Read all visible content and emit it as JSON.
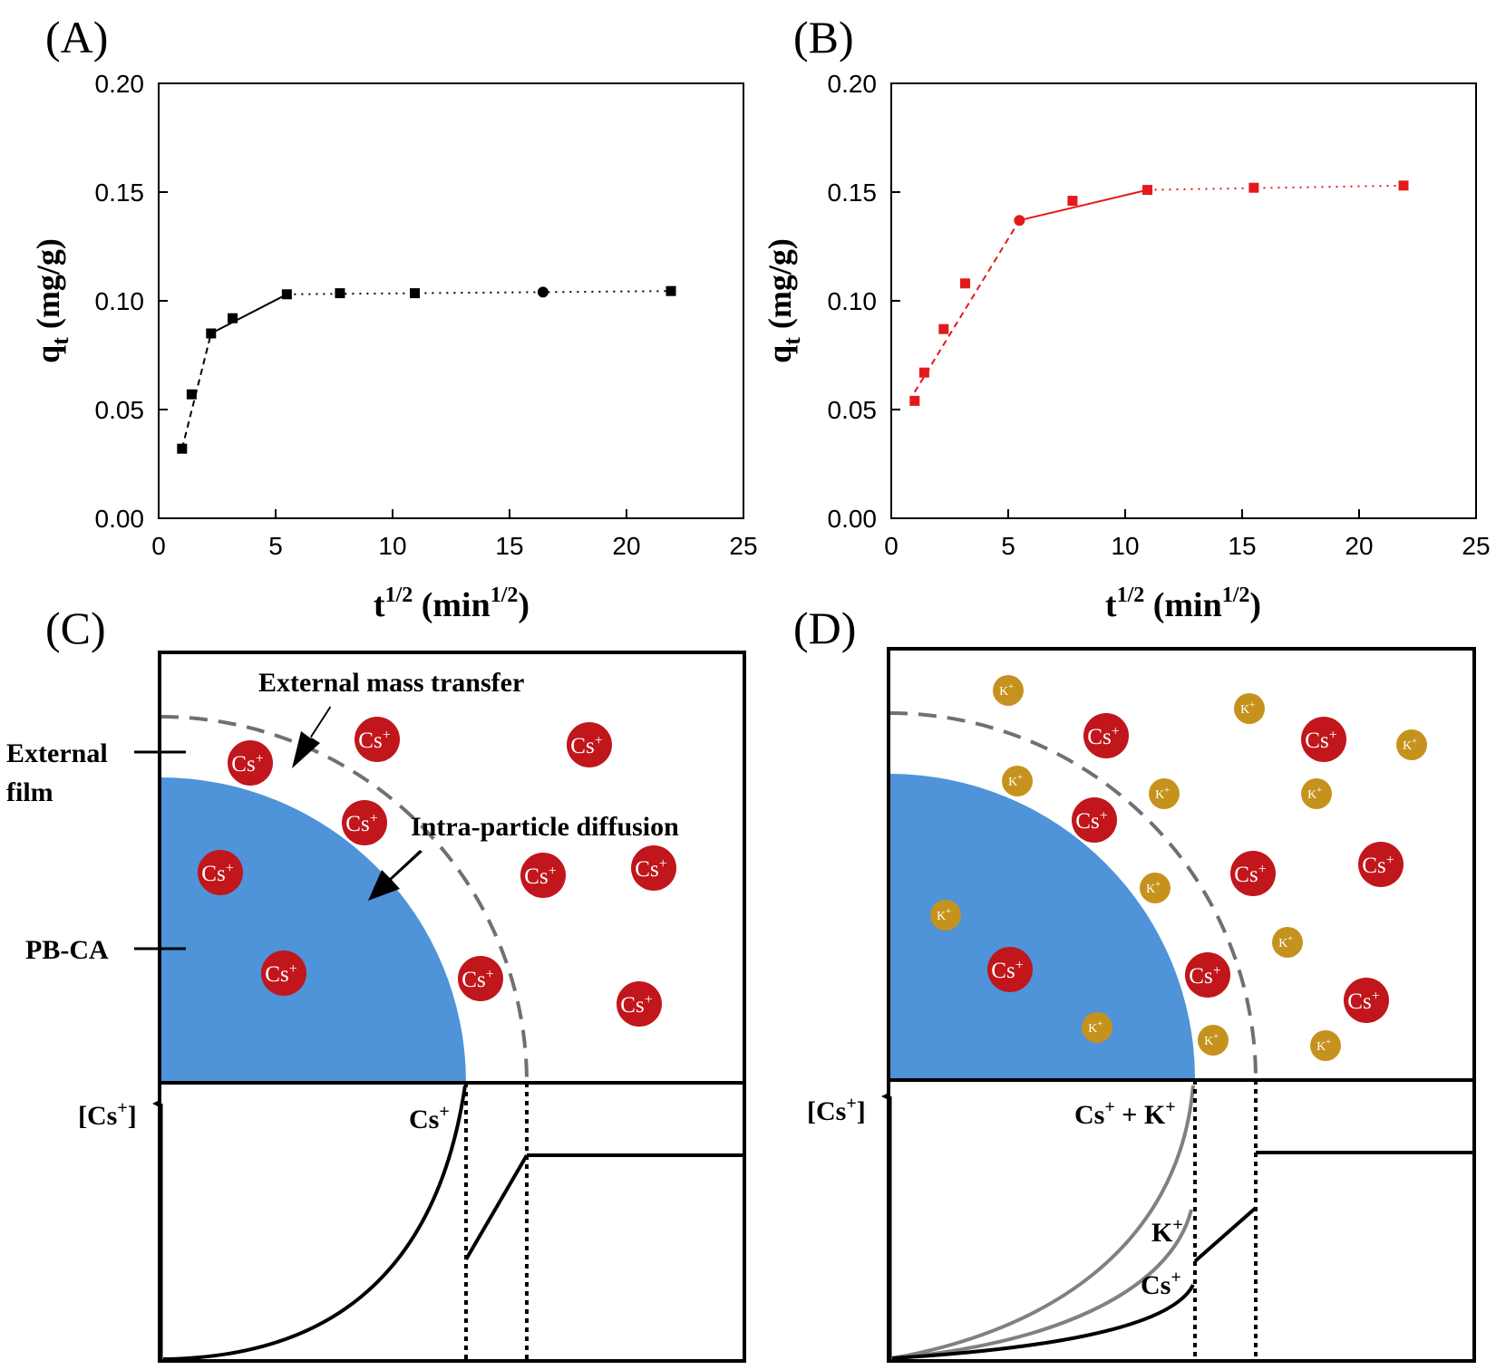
{
  "panels": {
    "A": "(A)",
    "B": "(B)",
    "C": "(C)",
    "D": "(D)"
  },
  "chart_data": [
    {
      "type": "scatter",
      "panel": "A",
      "ylabel_main": "q",
      "ylabel_sub": "t",
      "ylabel_unit": " (mg/g)",
      "xlabel_main": "t",
      "xlabel_sup": "1/2",
      "xlabel_unit": " (min",
      "xlabel_unit_sup": "1/2",
      "xlabel_close": ")",
      "xlim": [
        0,
        25
      ],
      "ylim": [
        0,
        0.2
      ],
      "xticks": [
        "0",
        "5",
        "10",
        "15",
        "20",
        "25"
      ],
      "yticks": [
        "0.00",
        "0.05",
        "0.10",
        "0.15",
        "0.20"
      ],
      "color": "#000000",
      "points": [
        [
          1.0,
          0.032
        ],
        [
          1.41,
          0.057
        ],
        [
          2.24,
          0.085
        ],
        [
          3.16,
          0.092
        ],
        [
          5.48,
          0.103
        ],
        [
          7.75,
          0.1035
        ],
        [
          10.95,
          0.1035
        ],
        [
          16.43,
          0.104
        ],
        [
          21.9,
          0.1045
        ]
      ],
      "round_marker_index": 7,
      "segments": [
        {
          "style": "dashed",
          "points": [
            [
              1.0,
              0.032
            ],
            [
              2.24,
              0.085
            ]
          ]
        },
        {
          "style": "solid",
          "points": [
            [
              2.24,
              0.085
            ],
            [
              5.48,
              0.103
            ]
          ]
        },
        {
          "style": "dotted",
          "points": [
            [
              5.48,
              0.103
            ],
            [
              21.9,
              0.1045
            ]
          ]
        }
      ]
    },
    {
      "type": "scatter",
      "panel": "B",
      "ylabel_main": "q",
      "ylabel_sub": "t",
      "ylabel_unit": " (mg/g)",
      "xlabel_main": "t",
      "xlabel_sup": "1/2",
      "xlabel_unit": " (min",
      "xlabel_unit_sup": "1/2",
      "xlabel_close": ")",
      "xlim": [
        0,
        25
      ],
      "ylim": [
        0,
        0.2
      ],
      "xticks": [
        "0",
        "5",
        "10",
        "15",
        "20",
        "25"
      ],
      "yticks": [
        "0.00",
        "0.05",
        "0.10",
        "0.15",
        "0.20"
      ],
      "color": "#e31a1c",
      "points": [
        [
          1.0,
          0.054
        ],
        [
          1.41,
          0.067
        ],
        [
          2.24,
          0.087
        ],
        [
          3.16,
          0.108
        ],
        [
          5.48,
          0.137
        ],
        [
          7.75,
          0.146
        ],
        [
          10.95,
          0.151
        ],
        [
          15.5,
          0.152
        ],
        [
          21.9,
          0.153
        ]
      ],
      "round_marker_index": 4,
      "segments": [
        {
          "style": "dashed",
          "points": [
            [
              1.0,
              0.058
            ],
            [
              5.48,
              0.137
            ]
          ]
        },
        {
          "style": "solid",
          "points": [
            [
              5.48,
              0.137
            ],
            [
              10.95,
              0.151
            ]
          ]
        },
        {
          "style": "dotted",
          "points": [
            [
              10.95,
              0.151
            ],
            [
              21.9,
              0.153
            ]
          ]
        }
      ]
    }
  ],
  "diagram_c": {
    "label_external_mass_transfer": "External mass transfer",
    "label_intra_particle": "Intra-particle diffusion",
    "label_external_1": "External",
    "label_external_2": "film",
    "label_pbca": "PB-CA",
    "ion_cs": "Cs",
    "ion_sup": "+",
    "axis_label_open": "[Cs",
    "axis_label_sup": "+",
    "axis_label_close": "]",
    "curve_label": "Cs",
    "curve_label_sup": "+"
  },
  "diagram_d": {
    "ion_cs": "Cs",
    "ion_k": "K",
    "ion_sup": "+",
    "axis_label_open": "[Cs",
    "axis_label_sup": "+",
    "axis_label_close": "]",
    "curve_label_sum_a": "Cs",
    "curve_label_sum_b": " + K",
    "curve_label_k": "K",
    "curve_label_cs": "Cs",
    "curve_label_sup": "+"
  },
  "colors": {
    "particle": "#4f93d9",
    "cs_ion": "#c0161c",
    "k_ion": "#c6921e",
    "film": "#707070"
  }
}
